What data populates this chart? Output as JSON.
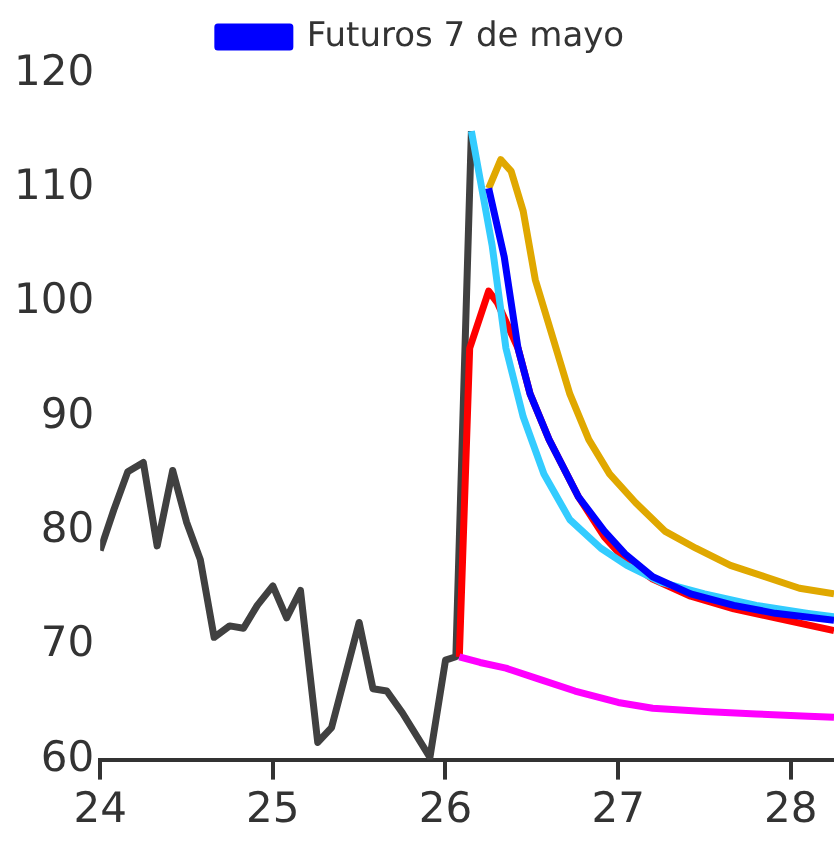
{
  "chart_data": {
    "type": "line",
    "xlim": [
      24,
      28.25
    ],
    "xticks": [
      24,
      25,
      26,
      27,
      28
    ],
    "ylim": [
      60,
      120
    ],
    "yticks": [
      60,
      70,
      80,
      90,
      100,
      110,
      120
    ],
    "grid": false,
    "legend": "top",
    "marker": "none",
    "line_style": "solid",
    "series": [
      {
        "color": "#404040",
        "x": [
          24.0,
          24.08,
          24.16,
          24.25,
          24.33,
          24.42,
          24.5,
          24.58,
          24.66,
          24.75,
          24.83,
          24.91,
          25.0,
          25.08,
          25.16,
          25.26,
          25.34,
          25.5,
          25.58,
          25.66,
          25.75,
          25.91,
          26.0,
          26.06,
          26.15
        ],
        "values": [
          78.3,
          81.9,
          85.2,
          86,
          78.7,
          85.3,
          80.8,
          77.5,
          70.7,
          71.7,
          71.5,
          73.5,
          75.2,
          72.4,
          74.8,
          61.5,
          62.8,
          72,
          66.2,
          66,
          64.1,
          60.2,
          68.7,
          69,
          115
        ]
      },
      {
        "color": "#ff0000",
        "x": [
          26.08,
          26.14,
          26.25,
          26.3,
          26.42,
          26.49,
          26.6,
          26.77,
          26.92,
          27.04,
          27.2,
          27.42,
          27.67,
          27.91,
          28.25
        ],
        "values": [
          69,
          96,
          101,
          100,
          96,
          92,
          88,
          83,
          79.5,
          77.5,
          75.8,
          74.3,
          73.2,
          72.4,
          71.3
        ]
      },
      {
        "color": "#e0a800",
        "x": [
          26.25,
          26.32,
          26.38,
          26.45,
          26.52,
          26.62,
          26.72,
          26.83,
          26.95,
          27.1,
          27.27,
          27.45,
          27.65,
          27.85,
          28.05,
          28.25
        ],
        "values": [
          110,
          112.5,
          111.5,
          108,
          102,
          97,
          92,
          88,
          85,
          82.5,
          80,
          78.5,
          77,
          76,
          75,
          74.5
        ]
      },
      {
        "color": "#33ccff",
        "x": [
          26.15,
          26.27,
          26.35,
          26.45,
          26.57,
          26.72,
          26.9,
          27.05,
          27.25,
          27.5,
          27.8,
          28.1,
          28.25
        ],
        "values": [
          115,
          105,
          96,
          90,
          85,
          81,
          78.5,
          77,
          75.5,
          74.5,
          73.5,
          72.8,
          72.5
        ]
      },
      {
        "name": "Futuros 7 de mayo",
        "color": "#0000ff",
        "x": [
          26.25,
          26.34,
          26.42,
          26.49,
          26.6,
          26.77,
          26.92,
          27.04,
          27.2,
          27.42,
          27.67,
          27.91,
          28.25
        ],
        "values": [
          110,
          104,
          96,
          92,
          88,
          83,
          80,
          78,
          76,
          74.5,
          73.5,
          72.8,
          72.2
        ]
      },
      {
        "color": "#ff00ff",
        "x": [
          26.08,
          26.2,
          26.35,
          26.55,
          26.75,
          27.0,
          27.2,
          27.5,
          27.8,
          28.1,
          28.25
        ],
        "values": [
          69,
          68.5,
          68,
          67,
          66,
          65,
          64.5,
          64.2,
          64,
          63.8,
          63.7
        ]
      }
    ]
  }
}
